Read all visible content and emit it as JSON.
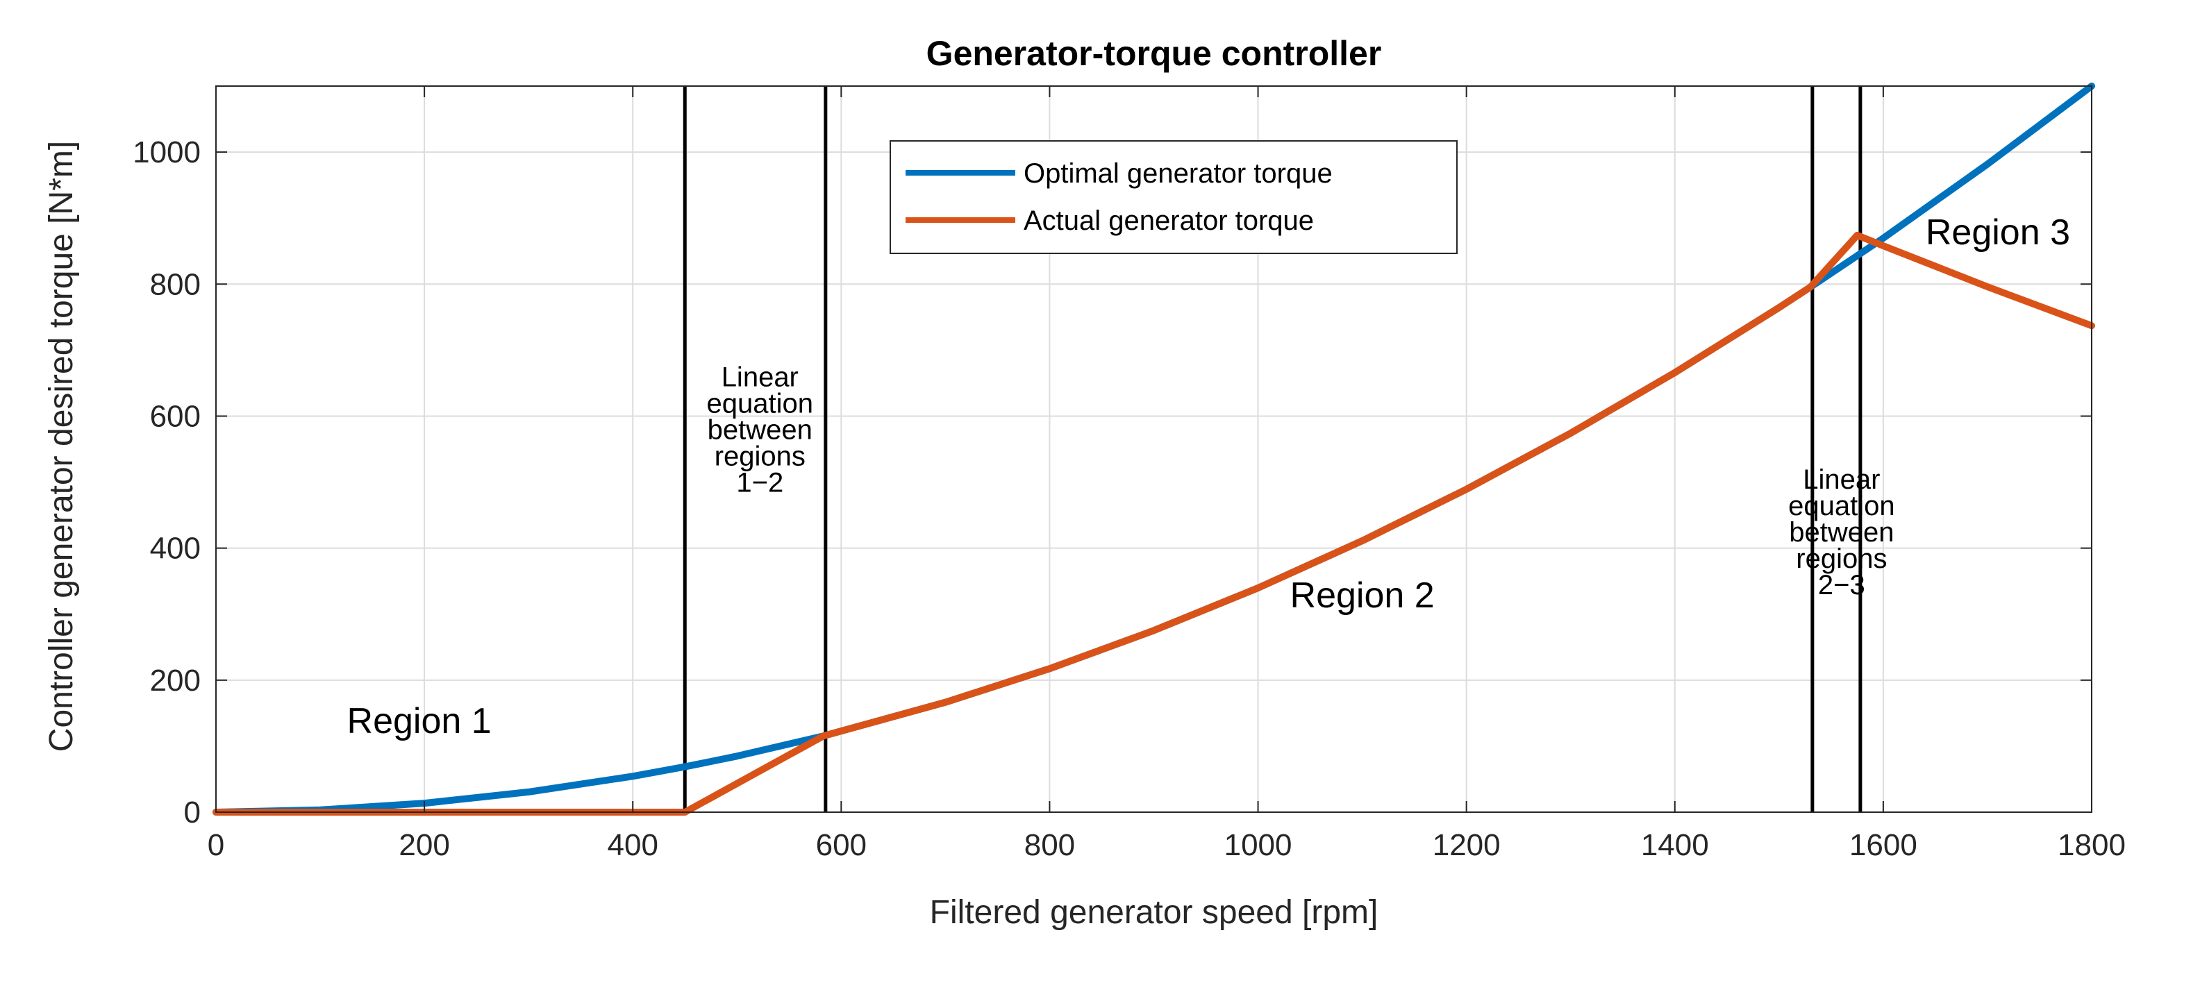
{
  "chart_data": {
    "type": "line",
    "title": "Generator-torque controller",
    "xlabel": "Filtered generator speed [rpm]",
    "ylabel": "Controller generator desired torque [N*m]",
    "xlim": [
      0,
      1800
    ],
    "ylim": [
      0,
      1100
    ],
    "xticks": [
      0,
      200,
      400,
      600,
      800,
      1000,
      1200,
      1400,
      1600,
      1800
    ],
    "yticks": [
      0,
      200,
      400,
      600,
      800,
      1000
    ],
    "grid": true,
    "legend_position": "top-center",
    "series": [
      {
        "name": "Optimal generator torque",
        "color": "#0072BD",
        "x": [
          0,
          100,
          200,
          300,
          400,
          450,
          500,
          583,
          700,
          800,
          900,
          1000,
          1100,
          1200,
          1300,
          1400,
          1500,
          1530,
          1575,
          1600,
          1700,
          1800
        ],
        "y": [
          0,
          3.4,
          13.6,
          30.6,
          54.4,
          68.8,
          84.9,
          115.5,
          166.5,
          217.4,
          275.2,
          339.7,
          411.1,
          489.2,
          574.1,
          665.9,
          764.4,
          795.3,
          843.0,
          869.6,
          981.7,
          1100
        ]
      },
      {
        "name": "Actual generator torque",
        "color": "#D95319",
        "x": [
          0,
          100,
          200,
          300,
          400,
          450,
          583,
          700,
          800,
          900,
          1000,
          1100,
          1200,
          1300,
          1400,
          1500,
          1530,
          1575,
          1600,
          1700,
          1800
        ],
        "y": [
          0,
          0,
          0,
          0,
          0,
          0,
          115.5,
          166.5,
          217.4,
          275.2,
          339.7,
          411.1,
          489.2,
          574.1,
          665.9,
          764.4,
          795.3,
          874,
          858,
          796,
          737
        ]
      }
    ],
    "vertical_lines": [
      450,
      585,
      1532,
      1578
    ],
    "annotations": [
      {
        "text": "Region 1",
        "x": 195,
        "y": 120
      },
      {
        "text": "Region 2",
        "x": 1100,
        "y": 310
      },
      {
        "text": "Region 3",
        "x": 1710,
        "y": 860
      },
      {
        "text": "Linear\nequation\nbetween\nregions\n1−2",
        "x": 522,
        "y": 645
      },
      {
        "text": "Linear\nequation\nbetween\nregions\n2−3",
        "x": 1560,
        "y": 490
      }
    ]
  }
}
